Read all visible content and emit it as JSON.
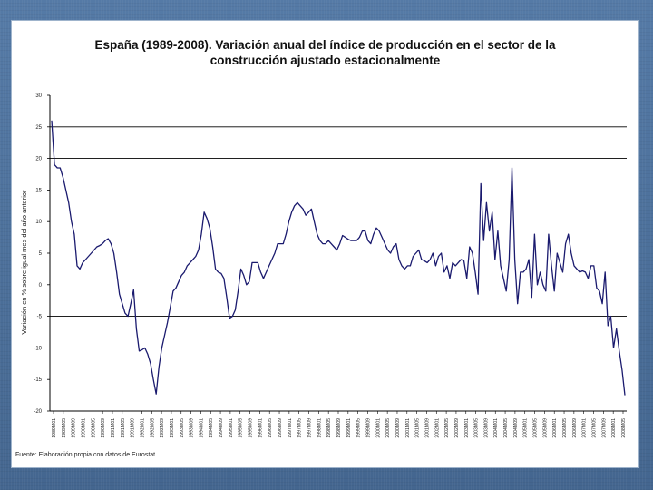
{
  "chart_data": {
    "type": "line",
    "title_line1": "España (1989-2008). Variación anual del índice de producción en el sector de la",
    "title_line2": "construcción ajustado estacionalmente",
    "ylabel": "Variación en % sobre igual mes del año anterior",
    "ylim": [
      -20,
      30
    ],
    "yticks": [
      30,
      25,
      20,
      15,
      10,
      5,
      0,
      -5,
      -10,
      -15,
      -20
    ],
    "reference_lines": [
      25,
      20,
      -5,
      -10
    ],
    "line_color": "#1a1a6e",
    "source": "Fuente: Elaboración propia con datos de Eurostat.",
    "series": [
      {
        "values": [
          26,
          19,
          18.5,
          18.5,
          17,
          15,
          13,
          10,
          8,
          3,
          2.5,
          3.5,
          4,
          4.5,
          5,
          5.5,
          6,
          6.2,
          6.5,
          7,
          7.3,
          6.5,
          5,
          2,
          -1.5,
          -3,
          -4.5,
          -5,
          -3,
          -0.8,
          -7,
          -10.5,
          -10.3,
          -10,
          -11,
          -12.5,
          -15,
          -17.3,
          -13,
          -10,
          -8,
          -6,
          -3.5,
          -1,
          -0.5,
          0.5,
          1.5,
          2,
          3,
          3.5,
          4,
          4.5,
          5.5,
          8,
          11.5,
          10.5,
          9,
          6,
          2.5,
          2,
          1.8,
          1,
          -2,
          -5.3,
          -5,
          -4,
          -1,
          2.5,
          1.5,
          0,
          0.5,
          3.5,
          3.5,
          3.5,
          2,
          1,
          2,
          3,
          4,
          5,
          6.5,
          6.5,
          6.5,
          8,
          10,
          11.5,
          12.5,
          13,
          12.5,
          12,
          11,
          11.5,
          12,
          10,
          8,
          7,
          6.5,
          6.5,
          7,
          6.5,
          6,
          5.5,
          6.5,
          7.8,
          7.5,
          7.2,
          7,
          7,
          7,
          7.5,
          8.5,
          8.5,
          7,
          6.5,
          8,
          9,
          8.5,
          7.5,
          6.5,
          5.5,
          5,
          6,
          6.5,
          4,
          3,
          2.5,
          3,
          3,
          4.5,
          5,
          5.5,
          4,
          3.8,
          3.5,
          4,
          5,
          3,
          4.5,
          5,
          2,
          3,
          1,
          3.5,
          3,
          3.5,
          4,
          3.8,
          1,
          6,
          5,
          2,
          -1.5,
          16,
          7,
          13,
          8.5,
          11.5,
          4,
          8.5,
          3,
          1,
          -1,
          4,
          18.5,
          4,
          -3,
          2,
          2,
          2.5,
          4,
          -2,
          8,
          0,
          2,
          0,
          -1,
          8,
          3,
          -1,
          5,
          3.5,
          2,
          6.5,
          8,
          5,
          3,
          2.5,
          2,
          2.2,
          2,
          1,
          3,
          3,
          -0.5,
          -1,
          -3,
          2,
          -6.5,
          -5,
          -10,
          -7,
          -10.5,
          -13.5,
          -17.5
        ]
      }
    ],
    "x_labels": [
      "1989M01",
      "1989M05",
      "1989M09",
      "1990M01",
      "1990M05",
      "1990M09",
      "1991M01",
      "1991M05",
      "1991M09",
      "1992M01",
      "1992M05",
      "1992M09",
      "1993M01",
      "1993M05",
      "1993M09",
      "1994M01",
      "1994M05",
      "1994M09",
      "1995M01",
      "1995M05",
      "1995M09",
      "1996M01",
      "1996M05",
      "1996M09",
      "1997M01",
      "1997M05",
      "1997M09",
      "1998M01",
      "1998M05",
      "1998M09",
      "1999M01",
      "1999M05",
      "1999M09",
      "2000M01",
      "2000M05",
      "2000M09",
      "2001M01",
      "2001M05",
      "2001M09",
      "2002M01",
      "2002M05",
      "2002M09",
      "2003M01",
      "2003M05",
      "2003M09",
      "2004M01",
      "2004M05",
      "2004M09",
      "2005M01",
      "2005M05",
      "2005M09",
      "2006M01",
      "2006M05",
      "2006M09",
      "2007M01",
      "2007M05",
      "2007M09",
      "2008M01",
      "2008M05"
    ]
  }
}
